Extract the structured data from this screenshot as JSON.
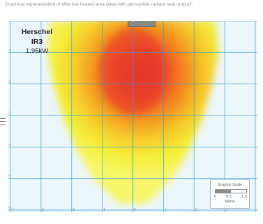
{
  "title": "Graphical representation of effective heated area (area with perceptible radiant heat output)*",
  "product": {
    "name": "Herschel IR3",
    "power": "1.95kW"
  },
  "scale": {
    "title": "Graphic Scale",
    "ticks": [
      "0",
      "0.5",
      "1.0"
    ],
    "unit": "Metre"
  },
  "colors": {
    "background": "#ecf6fb",
    "grid": "#2f9fd6",
    "heat_core": "#e8362b",
    "heat_mid": "#f38a1e",
    "heat_edge": "#f3f03a",
    "heater": "#8b8b8b"
  },
  "chart_data": {
    "type": "heatmap",
    "title": "Graphical representation of effective heated area (area with perceptible radiant heat output)*",
    "x_ticks": [
      -4,
      -3,
      -2,
      -1,
      0,
      1,
      2,
      3,
      4
    ],
    "y_ticks": [
      0,
      1,
      2,
      3,
      4,
      5,
      6
    ],
    "xlim": [
      -4,
      4
    ],
    "ylim": [
      6,
      0
    ],
    "grid": true,
    "heat_source": {
      "x": 0,
      "y": 0
    },
    "heated_area_width": [
      {
        "y": 0.0,
        "width": 5.4
      },
      {
        "y": 1.0,
        "width": 5.6
      },
      {
        "y": 2.0,
        "width": 5.2
      },
      {
        "y": 3.0,
        "width": 4.6
      },
      {
        "y": 4.0,
        "width": 3.8
      },
      {
        "y": 5.0,
        "width": 2.6
      },
      {
        "y": 5.8,
        "width": 0.9
      }
    ],
    "hottest_zone": {
      "x": 0,
      "y": 1.6
    }
  }
}
